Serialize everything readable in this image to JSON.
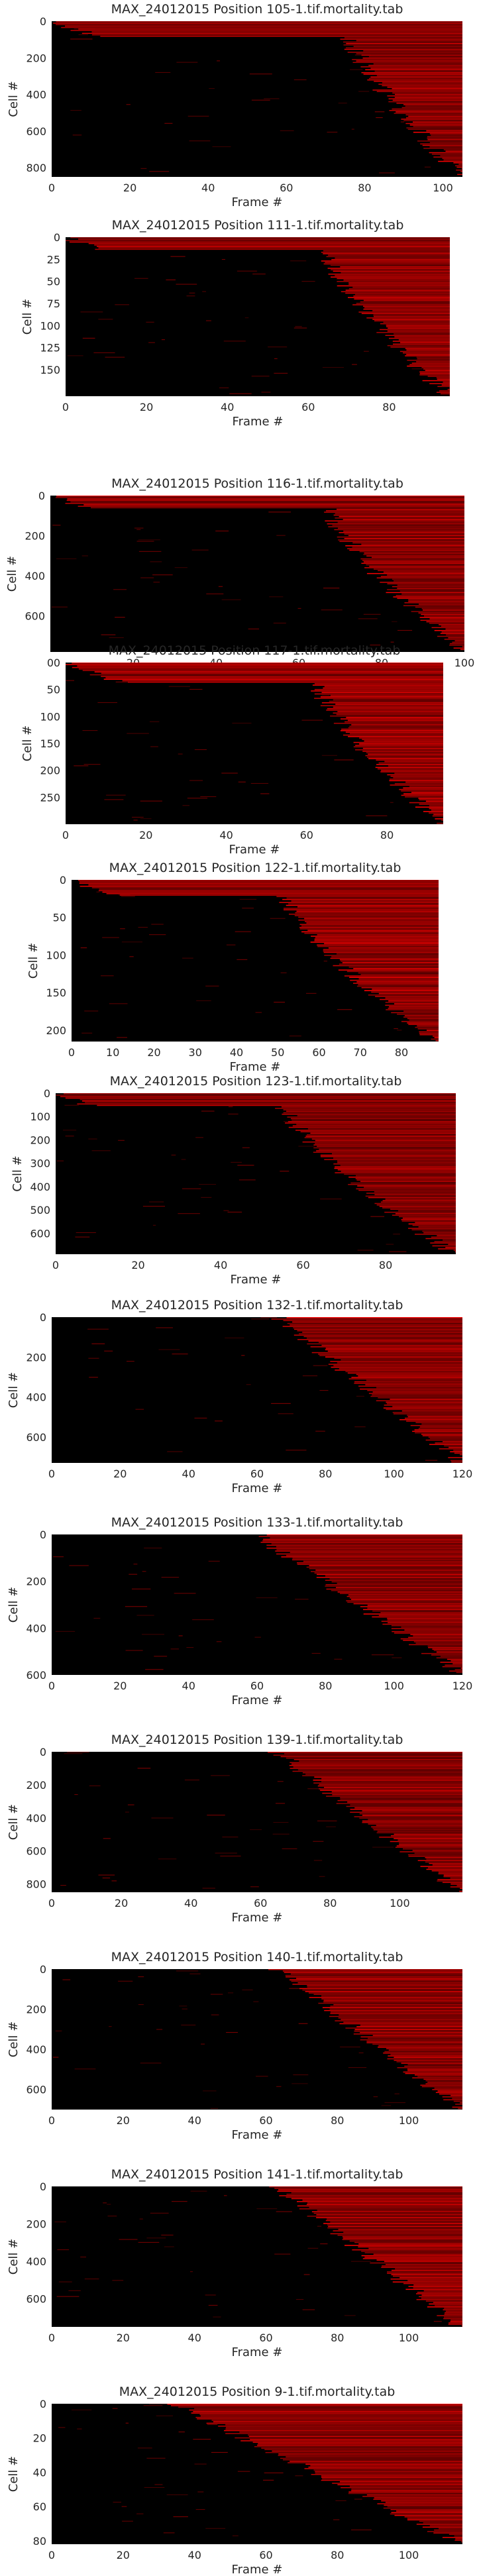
{
  "figure": {
    "background": "#ffffff",
    "heatmap_dark": "#000000",
    "heatmap_bright": "#ff0000"
  },
  "chart_data": [
    {
      "type": "heatmap",
      "title": "MAX_24012015 Position 105-1.tif.mortality.tab",
      "xlabel": "Frame #",
      "ylabel": "Cell #",
      "xlim": [
        0,
        105
      ],
      "ylim": [
        850,
        0
      ],
      "xticks": [
        "0",
        "20",
        "40",
        "60",
        "80",
        "100"
      ],
      "yticks": [
        "0",
        "200",
        "400",
        "600",
        "800"
      ],
      "pattern": {
        "onset_start": 0.0,
        "onset_end": 1.0,
        "knee": 0.85,
        "bright_rows": 0.1
      }
    },
    {
      "type": "heatmap",
      "title": "MAX_24012015 Position 111-1.tif.mortality.tab",
      "xlabel": "Frame #",
      "ylabel": "Cell #",
      "xlim": [
        0,
        95
      ],
      "ylim": [
        180,
        0
      ],
      "xticks": [
        "0",
        "20",
        "40",
        "60",
        "80"
      ],
      "yticks": [
        "0",
        "25",
        "50",
        "75",
        "100",
        "125",
        "150"
      ],
      "pattern": {
        "onset_start": 0.0,
        "onset_end": 1.0,
        "knee": 0.8,
        "bright_rows": 0.08
      }
    },
    {
      "type": "heatmap",
      "title": "MAX_24012015 Position 116-1.tif.mortality.tab",
      "xlabel": "Frame #",
      "ylabel": "Cell #",
      "xlim": [
        0,
        100
      ],
      "ylim": [
        780,
        0
      ],
      "xticks": [
        "0",
        "20",
        "40",
        "60",
        "80",
        "100"
      ],
      "yticks": [
        "0",
        "200",
        "400",
        "600"
      ],
      "pattern": {
        "onset_start": 0.0,
        "onset_end": 1.0,
        "knee": 0.8,
        "bright_rows": 0.08
      }
    },
    {
      "type": "heatmap",
      "title": "MAX_24012015 Position 117-1.tif.mortality.tab",
      "xlabel": "Frame #",
      "ylabel": "Cell #",
      "xlim": [
        0,
        94
      ],
      "ylim": [
        300,
        0
      ],
      "xticks": [
        "0",
        "20",
        "40",
        "60",
        "80"
      ],
      "yticks": [
        "0",
        "50",
        "100",
        "150",
        "200",
        "250"
      ],
      "pattern": {
        "onset_start": 0.0,
        "onset_end": 1.0,
        "knee": 0.78,
        "bright_rows": 0.12
      }
    },
    {
      "type": "heatmap",
      "title": "MAX_24012015 Position 122-1.tif.mortality.tab",
      "xlabel": "Frame #",
      "ylabel": "Cell #",
      "xlim": [
        0,
        89
      ],
      "ylim": [
        215,
        0
      ],
      "xticks": [
        "0",
        "10",
        "20",
        "30",
        "40",
        "50",
        "60",
        "70",
        "80"
      ],
      "yticks": [
        "0",
        "50",
        "100",
        "150",
        "200"
      ],
      "pattern": {
        "onset_start": 0.0,
        "onset_end": 1.0,
        "knee": 0.7,
        "bright_rows": 0.1
      }
    },
    {
      "type": "heatmap",
      "title": "MAX_24012015 Position 123-1.tif.mortality.tab",
      "xlabel": "Frame #",
      "ylabel": "Cell #",
      "xlim": [
        0,
        97
      ],
      "ylim": [
        690,
        0
      ],
      "xticks": [
        "0",
        "20",
        "40",
        "60",
        "80"
      ],
      "yticks": [
        "0",
        "100",
        "200",
        "300",
        "400",
        "500",
        "600"
      ],
      "pattern": {
        "onset_start": 0.0,
        "onset_end": 1.0,
        "knee": 0.7,
        "bright_rows": 0.08
      }
    },
    {
      "type": "heatmap",
      "title": "MAX_24012015 Position 132-1.tif.mortality.tab",
      "xlabel": "Frame #",
      "ylabel": "Cell #",
      "xlim": [
        0,
        120
      ],
      "ylim": [
        730,
        0
      ],
      "xticks": [
        "0",
        "20",
        "40",
        "60",
        "80",
        "100",
        "120"
      ],
      "yticks": [
        "0",
        "200",
        "400",
        "600"
      ],
      "pattern": {
        "onset_start": 0.55,
        "onset_end": 1.0,
        "knee": 0.0,
        "bright_rows": 0.0
      }
    },
    {
      "type": "heatmap",
      "title": "MAX_24012015 Position 133-1.tif.mortality.tab",
      "xlabel": "Frame #",
      "ylabel": "Cell #",
      "xlim": [
        0,
        120
      ],
      "ylim": [
        600,
        0
      ],
      "xticks": [
        "0",
        "20",
        "40",
        "60",
        "80",
        "100",
        "120"
      ],
      "yticks": [
        "0",
        "200",
        "400",
        "600"
      ],
      "pattern": {
        "onset_start": 0.5,
        "onset_end": 1.0,
        "knee": 0.0,
        "bright_rows": 0.0
      }
    },
    {
      "type": "heatmap",
      "title": "MAX_24012015 Position 139-1.tif.mortality.tab",
      "xlabel": "Frame #",
      "ylabel": "Cell #",
      "xlim": [
        0,
        118
      ],
      "ylim": [
        850,
        0
      ],
      "xticks": [
        "0",
        "20",
        "40",
        "60",
        "80",
        "100"
      ],
      "yticks": [
        "0",
        "200",
        "400",
        "600",
        "800"
      ],
      "pattern": {
        "onset_start": 0.55,
        "onset_end": 1.0,
        "knee": 0.0,
        "bright_rows": 0.0
      }
    },
    {
      "type": "heatmap",
      "title": "MAX_24012015 Position 140-1.tif.mortality.tab",
      "xlabel": "Frame #",
      "ylabel": "Cell #",
      "xlim": [
        0,
        115
      ],
      "ylim": [
        700,
        0
      ],
      "xticks": [
        "0",
        "20",
        "40",
        "60",
        "80",
        "100"
      ],
      "yticks": [
        "0",
        "200",
        "400",
        "600"
      ],
      "pattern": {
        "onset_start": 0.55,
        "onset_end": 1.0,
        "knee": 0.0,
        "bright_rows": 0.0
      }
    },
    {
      "type": "heatmap",
      "title": "MAX_24012015 Position 141-1.tif.mortality.tab",
      "xlabel": "Frame #",
      "ylabel": "Cell #",
      "xlim": [
        0,
        115
      ],
      "ylim": [
        750,
        0
      ],
      "xticks": [
        "0",
        "20",
        "40",
        "60",
        "80",
        "100"
      ],
      "yticks": [
        "0",
        "200",
        "400",
        "600"
      ],
      "pattern": {
        "onset_start": 0.55,
        "onset_end": 1.0,
        "knee": 0.0,
        "bright_rows": 0.0
      }
    },
    {
      "type": "heatmap",
      "title": "MAX_24012015 Position 9-1.tif.mortality.tab",
      "xlabel": "Frame #",
      "ylabel": "Cell #",
      "xlim": [
        0,
        115
      ],
      "ylim": [
        82,
        0
      ],
      "xticks": [
        "0",
        "20",
        "40",
        "60",
        "80",
        "100"
      ],
      "yticks": [
        "0",
        "20",
        "40",
        "60",
        "80"
      ],
      "pattern": {
        "onset_start": 0.3,
        "onset_end": 1.0,
        "knee": 0.0,
        "bright_rows": 0.2
      }
    }
  ]
}
